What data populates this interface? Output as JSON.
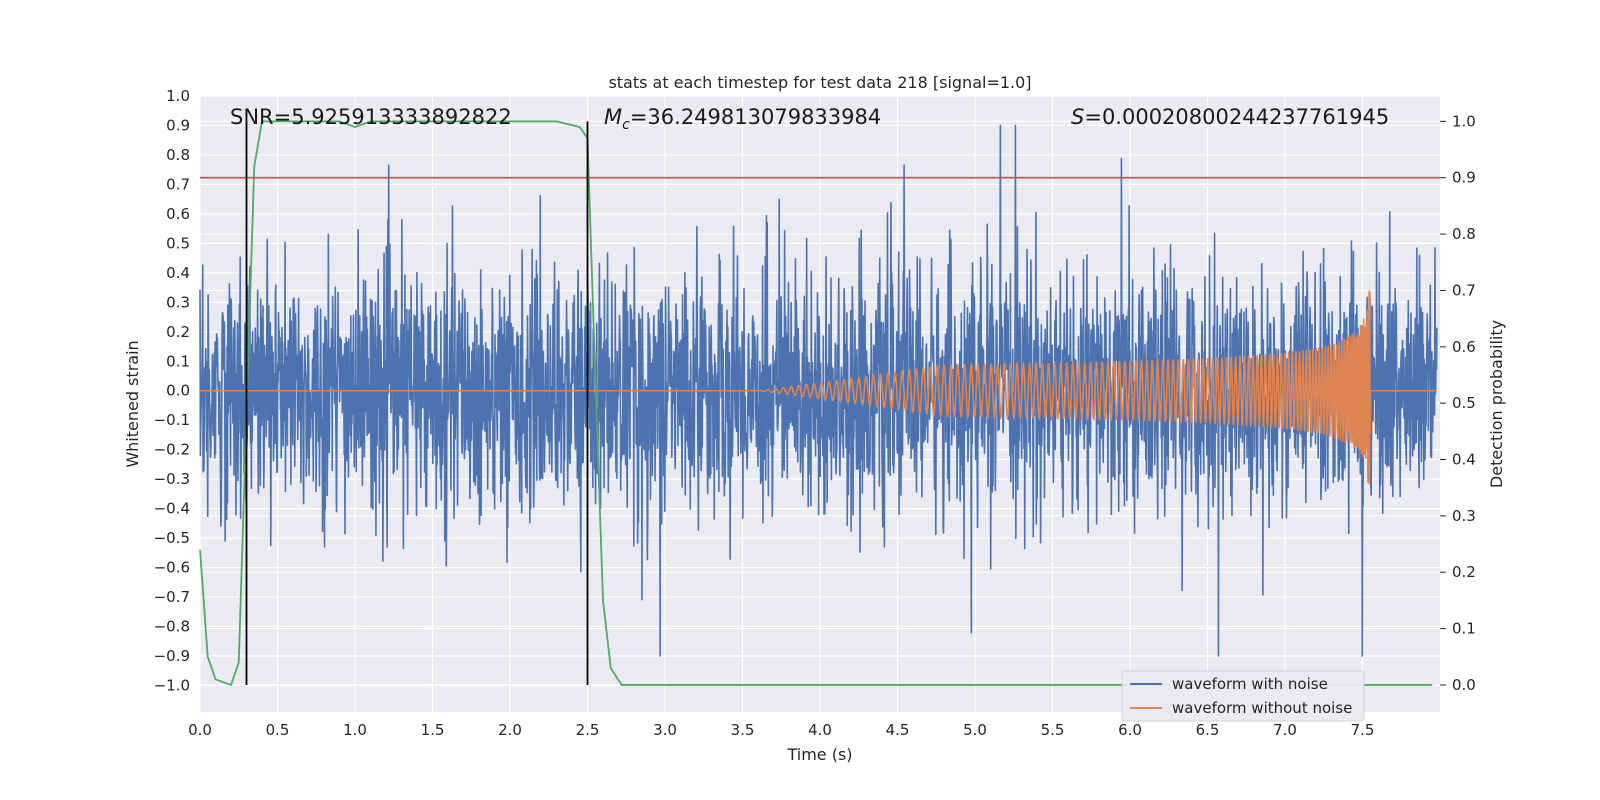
{
  "chart_data": {
    "type": "line",
    "title": "stats at each timestep for test data 218 [signal=1.0]",
    "xlabel": "Time (s)",
    "ylabel_left": "Whitened strain",
    "ylabel_right": "Detection probability",
    "xlim": [
      0.0,
      8.0
    ],
    "ylim_left": [
      -1.09,
      1.0
    ],
    "ylim_right": [
      -0.048,
      1.045
    ],
    "x_ticks": [
      "0.0",
      "0.5",
      "1.0",
      "1.5",
      "2.0",
      "2.5",
      "3.0",
      "3.5",
      "4.0",
      "4.5",
      "5.0",
      "5.5",
      "6.0",
      "6.5",
      "7.0",
      "7.5"
    ],
    "y_left_ticks": [
      "1.0",
      "0.9",
      "0.8",
      "0.7",
      "0.6",
      "0.5",
      "0.4",
      "0.3",
      "0.2",
      "0.1",
      "0.0",
      "−0.1",
      "−0.2",
      "−0.3",
      "−0.4",
      "−0.5",
      "−0.6",
      "−0.7",
      "−0.8",
      "−0.9",
      "−1.0"
    ],
    "y_right_ticks": [
      "1.0",
      "0.9",
      "0.8",
      "0.7",
      "0.6",
      "0.5",
      "0.4",
      "0.3",
      "0.2",
      "0.1",
      "0.0"
    ],
    "grid": true,
    "legend_placement": "lower-right",
    "annotations": {
      "snr": "SNR=5.925913333892822",
      "mc_symbol": "M",
      "mc_sub": "c",
      "mc_value": "=36.249813079833984",
      "s_symbol": "S",
      "s_value": "=0.00020800244237761945"
    },
    "threshold_right_axis": 0.9,
    "vertical_markers_x": [
      0.3,
      2.5
    ],
    "series": [
      {
        "name": "waveform with noise",
        "color": "#4c72b0",
        "envelope": "whitened noise, approx ±0.3 typical, peaks ±0.7–0.9, over 0–8 s"
      },
      {
        "name": "waveform without noise",
        "color": "#dd8452",
        "description": "inspiral chirp, amplitude rising from ~0 at 4.0 s to ~0.35 at 7.55 s, zero after"
      },
      {
        "color": "#55a868",
        "axis": "right",
        "x": [
          0.0,
          0.05,
          0.1,
          0.2,
          0.25,
          0.35,
          0.4,
          0.5,
          0.9,
          1.0,
          1.1,
          1.5,
          2.0,
          2.3,
          2.45,
          2.5,
          2.55,
          2.6,
          2.65,
          2.72,
          3.0,
          7.95
        ],
        "y": [
          0.24,
          0.05,
          0.01,
          0.0,
          0.04,
          0.92,
          1.0,
          1.0,
          1.0,
          0.99,
          1.0,
          1.0,
          1.0,
          1.0,
          0.99,
          0.97,
          0.55,
          0.15,
          0.03,
          0.0,
          0.0,
          0.0
        ]
      }
    ]
  }
}
